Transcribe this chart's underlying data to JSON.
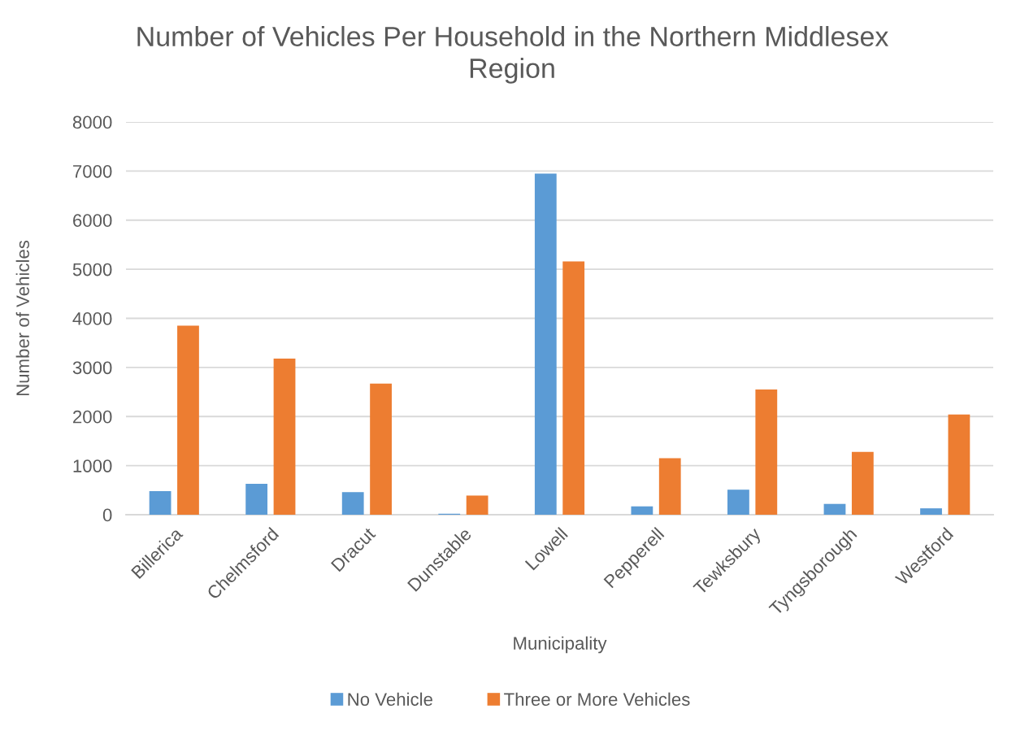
{
  "chart_data": {
    "type": "bar",
    "title": "Number of Vehicles Per Household in the Northern Middlesex Region",
    "xlabel": "Municipality",
    "ylabel": "Number of Vehicles",
    "categories": [
      "Billerica",
      "Chelmsford",
      "Dracut",
      "Dunstable",
      "Lowell",
      "Pepperell",
      "Tewksbury",
      "Tyngsborough",
      "Westford"
    ],
    "series": [
      {
        "name": "No Vehicle",
        "color": "#5b9bd5",
        "values": [
          480,
          630,
          460,
          20,
          6950,
          170,
          510,
          220,
          130
        ]
      },
      {
        "name": "Three or More Vehicles",
        "color": "#ed7d31",
        "values": [
          3850,
          3180,
          2670,
          390,
          5160,
          1150,
          2550,
          1280,
          2040
        ]
      }
    ],
    "ylim": [
      0,
      8000
    ],
    "yticks": [
      0,
      1000,
      2000,
      3000,
      4000,
      5000,
      6000,
      7000,
      8000
    ],
    "grid": "y",
    "legend": "bottom"
  }
}
